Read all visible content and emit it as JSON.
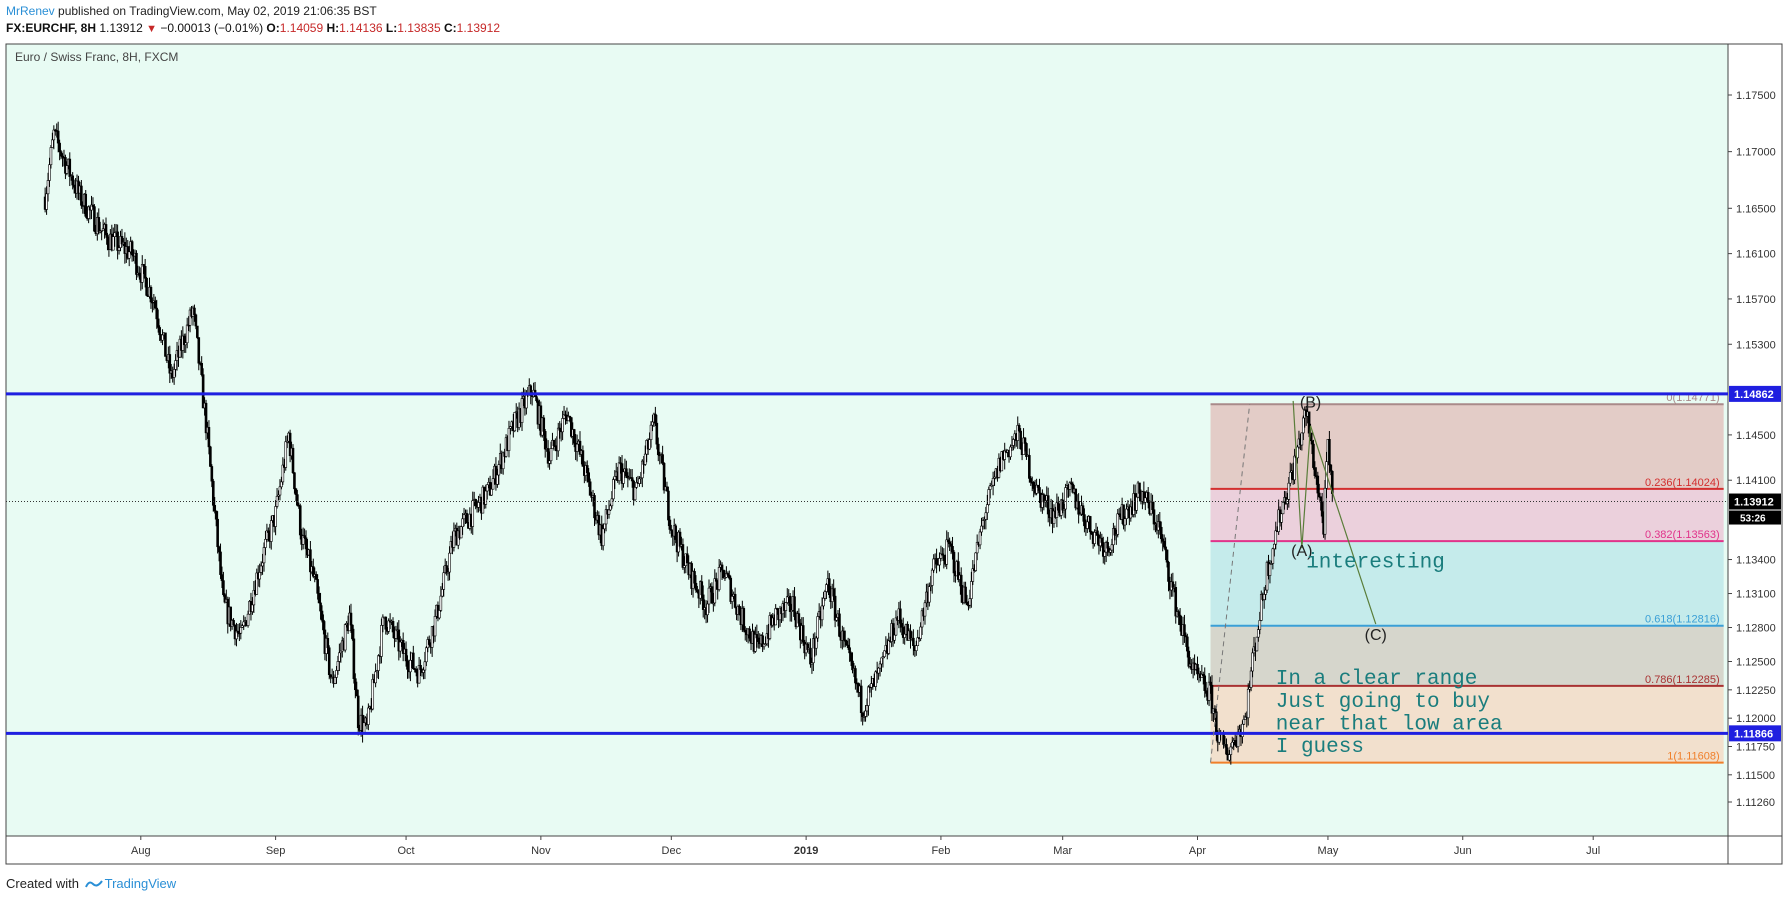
{
  "header": {
    "author": "MrRenev",
    "published_text": " published on TradingView.com, May 02, 2019 21:06:35 BST"
  },
  "symbol_line": {
    "symbol": "FX:EURCHF, 8H",
    "last": "1.13912",
    "change": "−0.00013 (−0.01%)",
    "open_label": "O:",
    "open": "1.14059",
    "high_label": "H:",
    "high": "1.14136",
    "low_label": "L:",
    "low": "1.13835",
    "close_label": "C:",
    "close": "1.13912"
  },
  "footer": {
    "created_with": "Created with",
    "brand": "TradingView"
  },
  "colors": {
    "background": "#e8fbf3",
    "range_line": "#1f1fe0",
    "candle": "#000000",
    "text_teal": "#1a7d7d"
  },
  "chart_data": {
    "type": "candlestick",
    "title": "Euro / Swiss Franc, 8H, FXCM",
    "x_ticks": [
      "Aug",
      "Sep",
      "Oct",
      "Nov",
      "Dec",
      "2019",
      "Feb",
      "Mar",
      "Apr",
      "May",
      "Jun",
      "Jul"
    ],
    "y_ticks": [
      "1.17500",
      "1.17000",
      "1.16500",
      "1.16100",
      "1.15700",
      "1.15300",
      "1.14500",
      "1.14100",
      "1.13400",
      "1.13100",
      "1.12800",
      "1.12500",
      "1.12250",
      "1.12000",
      "1.11750",
      "1.11500",
      "1.11260"
    ],
    "ylim": [
      1.1096,
      1.1795
    ],
    "price_path": [
      [
        "Jul 10",
        1.166
      ],
      [
        "Jul 12",
        1.1715
      ],
      [
        "Jul 18",
        1.166
      ],
      [
        "Jul 24",
        1.1625
      ],
      [
        "Jul 30",
        1.161
      ],
      [
        "Aug 4",
        1.157
      ],
      [
        "Aug 8",
        1.15
      ],
      [
        "Aug 13",
        1.156
      ],
      [
        "Aug 16",
        1.146
      ],
      [
        "Aug 20",
        1.13
      ],
      [
        "Aug 24",
        1.127
      ],
      [
        "Aug 28",
        1.133
      ],
      [
        "Sep 1",
        1.138
      ],
      [
        "Sep 4",
        1.145
      ],
      [
        "Sep 7",
        1.136
      ],
      [
        "Sep 10",
        1.132
      ],
      [
        "Sep 14",
        1.123
      ],
      [
        "Sep 18",
        1.129
      ],
      [
        "Sep 20",
        1.12
      ],
      [
        "Sep 22",
        1.119
      ],
      [
        "Sep 26",
        1.129
      ],
      [
        "Sep 30",
        1.126
      ],
      [
        "Oct 4",
        1.124
      ],
      [
        "Oct 8",
        1.129
      ],
      [
        "Oct 12",
        1.136
      ],
      [
        "Oct 16",
        1.138
      ],
      [
        "Oct 20",
        1.14
      ],
      [
        "Oct 26",
        1.146
      ],
      [
        "Oct 30",
        1.149
      ],
      [
        "Nov 3",
        1.143
      ],
      [
        "Nov 7",
        1.147
      ],
      [
        "Nov 11",
        1.142
      ],
      [
        "Nov 15",
        1.136
      ],
      [
        "Nov 19",
        1.142
      ],
      [
        "Nov 23",
        1.14
      ],
      [
        "Nov 27",
        1.146
      ],
      [
        "Dec 1",
        1.137
      ],
      [
        "Dec 5",
        1.133
      ],
      [
        "Dec 9",
        1.13
      ],
      [
        "Dec 13",
        1.133
      ],
      [
        "Dec 17",
        1.129
      ],
      [
        "Dec 21",
        1.126
      ],
      [
        "Dec 25",
        1.129
      ],
      [
        "Dec 29",
        1.13
      ],
      [
        "Jan 2",
        1.125
      ],
      [
        "Jan 6",
        1.132
      ],
      [
        "Jan 10",
        1.126
      ],
      [
        "Jan 14",
        1.121
      ],
      [
        "Jan 18",
        1.124
      ],
      [
        "Jan 22",
        1.129
      ],
      [
        "Jan 26",
        1.126
      ],
      [
        "Jan 30",
        1.133
      ],
      [
        "Feb 3",
        1.135
      ],
      [
        "Feb 7",
        1.13
      ],
      [
        "Feb 11",
        1.138
      ],
      [
        "Feb 15",
        1.143
      ],
      [
        "Feb 19",
        1.145
      ],
      [
        "Feb 23",
        1.14
      ],
      [
        "Feb 27",
        1.138
      ],
      [
        "Mar 3",
        1.14
      ],
      [
        "Mar 7",
        1.137
      ],
      [
        "Mar 11",
        1.135
      ],
      [
        "Mar 15",
        1.138
      ],
      [
        "Mar 19",
        1.14
      ],
      [
        "Mar 23",
        1.137
      ],
      [
        "Mar 27",
        1.13
      ],
      [
        "Mar 31",
        1.124
      ],
      [
        "Apr 4",
        1.122
      ],
      [
        "Apr 6",
        1.118
      ],
      [
        "Apr 8",
        1.117
      ],
      [
        "Apr 10",
        1.1185
      ],
      [
        "Apr 12",
        1.12
      ],
      [
        "Apr 14",
        1.126
      ],
      [
        "Apr 17",
        1.133
      ],
      [
        "Apr 20",
        1.138
      ],
      [
        "Apr 23",
        1.142
      ],
      [
        "Apr 26",
        1.147
      ],
      [
        "Apr 28",
        1.142
      ],
      [
        "Apr 30",
        1.137
      ],
      [
        "May 1",
        1.144
      ],
      [
        "May 2",
        1.1391
      ]
    ],
    "horizontal_lines": [
      {
        "price": 1.14862,
        "label": "1.14862"
      },
      {
        "price": 1.11866,
        "label": "1.11866"
      }
    ],
    "last_price": {
      "price": 1.13912,
      "label": "1.13912",
      "countdown": "53:26"
    },
    "fib_start": "Apr 4",
    "fib_end": "Jul 31",
    "fib_levels": [
      {
        "ratio": "0",
        "price": 1.14771,
        "label": "0(1.14771)",
        "color": "#a98a8a"
      },
      {
        "ratio": "0.236",
        "price": 1.14024,
        "label": "0.236(1.14024)",
        "color": "#d32f2f"
      },
      {
        "ratio": "0.382",
        "price": 1.13563,
        "label": "0.382(1.13563)",
        "color": "#e0338a"
      },
      {
        "ratio": "0.618",
        "price": 1.12816,
        "label": "0.618(1.12816)",
        "color": "#3a9fd6"
      },
      {
        "ratio": "0.786",
        "price": 1.12285,
        "label": "0.786(1.12285)",
        "color": "#a83232"
      },
      {
        "ratio": "1",
        "price": 1.11608,
        "label": "1(1.11608)",
        "color": "#f07f2a"
      }
    ],
    "fib_zones": [
      "#e3ccc7",
      "#ebd0dc",
      "#c5ebeb",
      "#d6d6cc",
      "#f2e0cd"
    ],
    "wave_labels": [
      {
        "text": "(B)",
        "date": "Apr 27",
        "price": 1.1474
      },
      {
        "text": "(A)",
        "date": "Apr 25",
        "price": 1.1343
      },
      {
        "text": "(C)",
        "date": "May 12",
        "price": 1.1269
      }
    ],
    "notes": [
      {
        "text": "interesting",
        "date": "Apr 26",
        "price": 1.1333
      },
      {
        "text": "In a clear range",
        "date": "Apr 19",
        "price": 1.123
      },
      {
        "text": "Just going to buy",
        "date": "Apr 19",
        "price": 1.121
      },
      {
        "text": "near that low area",
        "date": "Apr 19",
        "price": 1.119
      },
      {
        "text": "I guess",
        "date": "Apr 19",
        "price": 1.117
      }
    ]
  }
}
